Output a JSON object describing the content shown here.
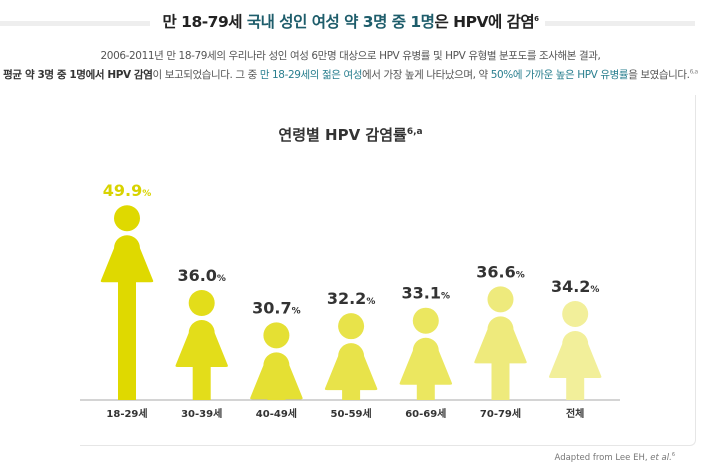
{
  "header": {
    "title_plain": "만 18-79세 ",
    "title_highlight": "국내 성인 여성 약 3명 중 1명",
    "title_rest": "은 HPV에 감염",
    "title_sup": "6"
  },
  "description": {
    "line1": "2006-2011년 만 18-79세의 우리나라 성인 여성 6만명 대상으로 HPV 유병률 및 HPV 유형별 분포도를 조사해본 결과,",
    "line2_bold": "평균 약 3명 중 1명에서 HPV 감염",
    "line2_a": "이 보고되었습니다. 그 중 ",
    "line2_hl1": "만 18-29세의 젊은 여성",
    "line2_b": "에서 가장 높게 나타났으며, 약 ",
    "line2_hl2": "50%에 가까운 높은 HPV 유병률",
    "line2_c": "을 보였습니다.",
    "line2_sup": "6,a"
  },
  "chart_data": {
    "type": "bar",
    "title": "연령별 HPV 감염률",
    "title_sup": "6,a",
    "categories": [
      "18-29세",
      "30-39세",
      "40-49세",
      "50-59세",
      "60-69세",
      "70-79세",
      "전체"
    ],
    "values": [
      49.9,
      36.0,
      30.7,
      32.2,
      33.1,
      36.6,
      34.2
    ],
    "value_labels": [
      "49.9",
      "36.0",
      "30.7",
      "32.2",
      "33.1",
      "36.6",
      "34.2"
    ],
    "unit": "%",
    "mark": "female-figure-icon",
    "colors": [
      "#dfd900",
      "#e3dd1a",
      "#e5e033",
      "#e8e34a",
      "#ebe760",
      "#eeea7c",
      "#f2ef9a"
    ],
    "highlight_label_color": "#d8d300",
    "label_color": "#333333"
  },
  "footer": {
    "source": "Adapted from Lee EH, ",
    "source_italic": "et al.",
    "source_sup": "6"
  }
}
